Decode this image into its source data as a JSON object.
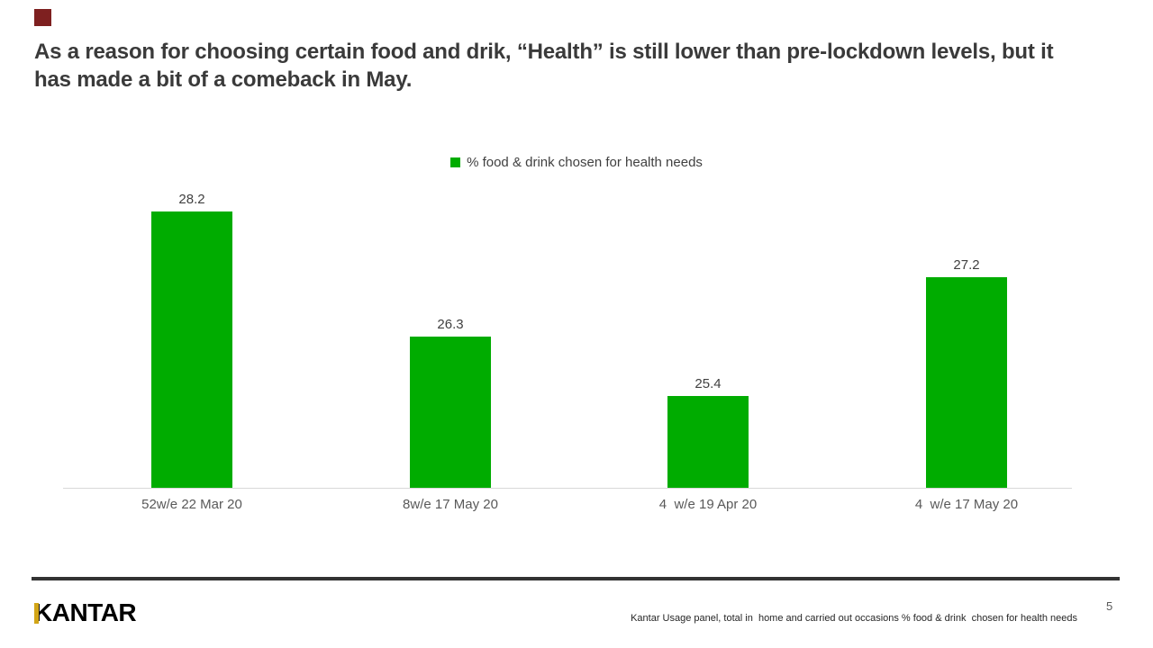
{
  "slide": {
    "title": "As a reason for choosing certain food and drik, “Health” is still lower than pre-lockdown levels, but it has made a bit of a comeback in May.",
    "logo_text": "KANTAR",
    "footer_source": "Kantar Usage panel, total in  home and carried out occasions % food & drink  chosen for health needs",
    "page_number": "5",
    "accent_square_color": "#7E2020",
    "logo_accent_color": "#D2A517",
    "divider_color": "#333333"
  },
  "chart_data": {
    "type": "bar",
    "title": "",
    "legend": [
      "% food & drink chosen for health needs"
    ],
    "legend_position": "top-center",
    "categories": [
      "52w/e 22 Mar 20",
      "8w/e 17 May 20",
      "4  w/e 19 Apr 20",
      "4  w/e 17 May 20"
    ],
    "values": [
      28.2,
      26.3,
      25.4,
      27.2
    ],
    "data_labels": true,
    "bar_color": "#00AC00",
    "axis_line_color": "#D9D9D9",
    "grid": false,
    "ylim": [
      24,
      28.6
    ],
    "xlabel": "",
    "ylabel": ""
  }
}
